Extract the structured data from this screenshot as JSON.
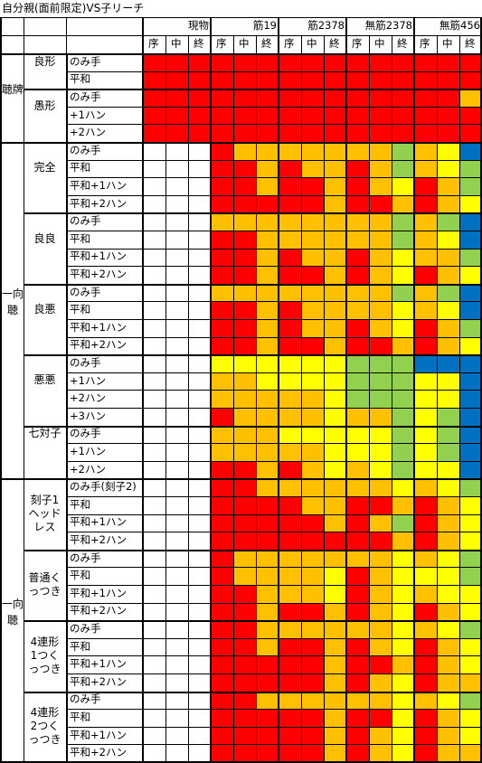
{
  "title": "自分親(面前限定)VS子リーチ",
  "colors": {
    "R": "#ff0000",
    "O": "#ffc000",
    "Y": "#ffff00",
    "G": "#92d050",
    "B": "#0070c0",
    "W": "#ffffff"
  },
  "column_groups": [
    "現物",
    "筋19",
    "筋2378",
    "無筋2378",
    "無筋456"
  ],
  "sub_columns": [
    "序",
    "中",
    "終"
  ],
  "sections": [
    {
      "label": "聴牌",
      "groups": [
        {
          "label": "良形",
          "rows": [
            {
              "label": "のみ手",
              "cells": "RRRRRRRRRRRRRRR"
            },
            {
              "label": "平和",
              "cells": "RRRRRRRRRRRRRRR"
            }
          ]
        },
        {
          "label": "愚形",
          "rows": [
            {
              "label": "のみ手",
              "cells": "RRRRRRRRRRRRRRO"
            },
            {
              "label": "+1ハン",
              "cells": "RRRRRRRRRRRRRRR"
            },
            {
              "label": "+2ハン",
              "cells": "RRRRRRRRRRRRRRR"
            }
          ]
        }
      ]
    },
    {
      "label": "一向聴",
      "groups": [
        {
          "label": "完全",
          "rows": [
            {
              "label": "のみ手",
              "cells": "WWWROOOOOOOGOYB"
            },
            {
              "label": "平和",
              "cells": "WWWRROROOROGOYG"
            },
            {
              "label": "平和+1ハン",
              "cells": "WWWRRORROROYROG"
            },
            {
              "label": "平和+2ハン",
              "cells": "WWWRRRRRORROROY"
            }
          ]
        },
        {
          "label": "良良",
          "rows": [
            {
              "label": "のみ手",
              "cells": "WWWOOOOOOOOGOGB"
            },
            {
              "label": "平和",
              "cells": "WWWRROOOOOOGOYB"
            },
            {
              "label": "平和+1ハン",
              "cells": "WWWRROROOROYOOG"
            },
            {
              "label": "平和+2ハン",
              "cells": "WWWRRORROROYROY"
            }
          ]
        },
        {
          "label": "良悪",
          "rows": [
            {
              "label": "のみ手",
              "cells": "WWWOOOOOOOOGOGB"
            },
            {
              "label": "平和",
              "cells": "WWWRROROOOOYOYB"
            },
            {
              "label": "平和+1ハン",
              "cells": "WWWRROROOROYROG"
            },
            {
              "label": "平和+2ハン",
              "cells": "WWWRRORRORROROY"
            }
          ]
        },
        {
          "label": "悪悪",
          "rows": [
            {
              "label": "のみ手",
              "cells": "WWWYYYYYYGGGBBB"
            },
            {
              "label": "+1ハン",
              "cells": "WWWOOYYYYGGGYYB"
            },
            {
              "label": "+2ハン",
              "cells": "WWWOOOOOYGGGYYB"
            },
            {
              "label": "+3ハン",
              "cells": "WWWROOOOYOOGYGB"
            }
          ]
        },
        {
          "label": "七対子",
          "rows": [
            {
              "label": "のみ手",
              "cells": "WWWOOOYYYYYGYGB"
            },
            {
              "label": "+1ハン",
              "cells": "WWWOOOOOYYYGYGB"
            },
            {
              "label": "+2ハン",
              "cells": "WWWRROROYOYGYYB"
            }
          ]
        }
      ]
    },
    {
      "label": "一向聴",
      "groups": [
        {
          "label": "刻子1ヘッドレス",
          "rows": [
            {
              "label": "のみ手(刻子2)",
              "cells": "WWWRROOOOOOYOYG"
            },
            {
              "label": "平和",
              "cells": "WWWRRRROORROROY"
            },
            {
              "label": "平和+1ハン",
              "cells": "WWWRRRRROROGROY"
            },
            {
              "label": "平和+2ハン",
              "cells": "WWWRRRRRRRROROY"
            }
          ]
        },
        {
          "label": "普通くっつき",
          "rows": [
            {
              "label": "のみ手",
              "cells": "WWWROOOOOOOYOYG"
            },
            {
              "label": "平和",
              "cells": "WWWROOOOYROYYYG"
            },
            {
              "label": "平和+1ハン",
              "cells": "WWWRROOOYROYOYY"
            },
            {
              "label": "平和+2ハン",
              "cells": "WWWRRORROROYROY"
            }
          ]
        },
        {
          "label": "4連形1つくっつき",
          "rows": [
            {
              "label": "のみ手",
              "cells": "WWWRROOOOOOYOYG"
            },
            {
              "label": "平和",
              "cells": "WWWRRORROROYROY"
            },
            {
              "label": "平和+1ハン",
              "cells": "WWWRRRRRORROROY"
            },
            {
              "label": "平和+2ハン",
              "cells": "WWWRRRRROROYROO"
            }
          ]
        },
        {
          "label": "4連形2つくっつき",
          "rows": [
            {
              "label": "のみ手",
              "cells": "WWWRROOOOOOYOYG"
            },
            {
              "label": "平和",
              "cells": "WWWRRRRRORRYROY"
            },
            {
              "label": "平和+1ハン",
              "cells": "WWWRRRRROROYROY"
            },
            {
              "label": "平和+2ハン",
              "cells": "WWWRRRRROROYROO"
            }
          ]
        }
      ]
    }
  ]
}
